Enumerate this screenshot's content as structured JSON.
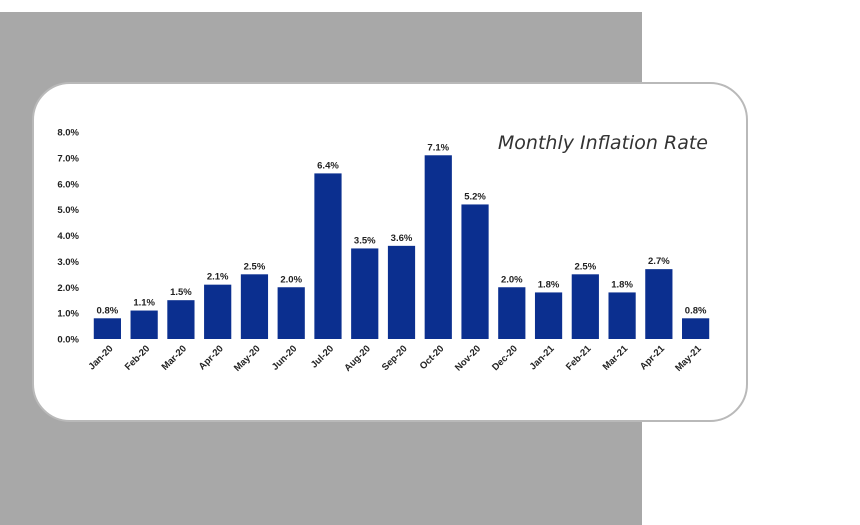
{
  "chart_data": {
    "type": "bar",
    "title": "Monthly Inflation Rate",
    "xlabel": "",
    "ylabel": "",
    "categories": [
      "Jan-20",
      "Feb-20",
      "Mar-20",
      "Apr-20",
      "May-20",
      "Jun-20",
      "Jul-20",
      "Aug-20",
      "Sep-20",
      "Oct-20",
      "Nov-20",
      "Dec-20",
      "Jan-21",
      "Feb-21",
      "Mar-21",
      "Apr-21",
      "May-21"
    ],
    "values": [
      0.8,
      1.1,
      1.5,
      2.1,
      2.5,
      2.0,
      6.4,
      3.5,
      3.6,
      7.1,
      5.2,
      2.0,
      1.8,
      2.5,
      1.8,
      2.7,
      0.8
    ],
    "data_labels": [
      "0.8%",
      "1.1%",
      "1.5%",
      "2.1%",
      "2.5%",
      "2.0%",
      "6.4%",
      "3.5%",
      "3.6%",
      "7.1%",
      "5.2%",
      "2.0%",
      "1.8%",
      "2.5%",
      "1.8%",
      "2.7%",
      "0.8%"
    ],
    "y_ticks": [
      "0.0%",
      "1.0%",
      "2.0%",
      "3.0%",
      "4.0%",
      "5.0%",
      "6.0%",
      "7.0%",
      "8.0%"
    ],
    "ylim": [
      0,
      8
    ],
    "grid": false,
    "legend": "none",
    "bar_color": "#0b2f8f"
  }
}
